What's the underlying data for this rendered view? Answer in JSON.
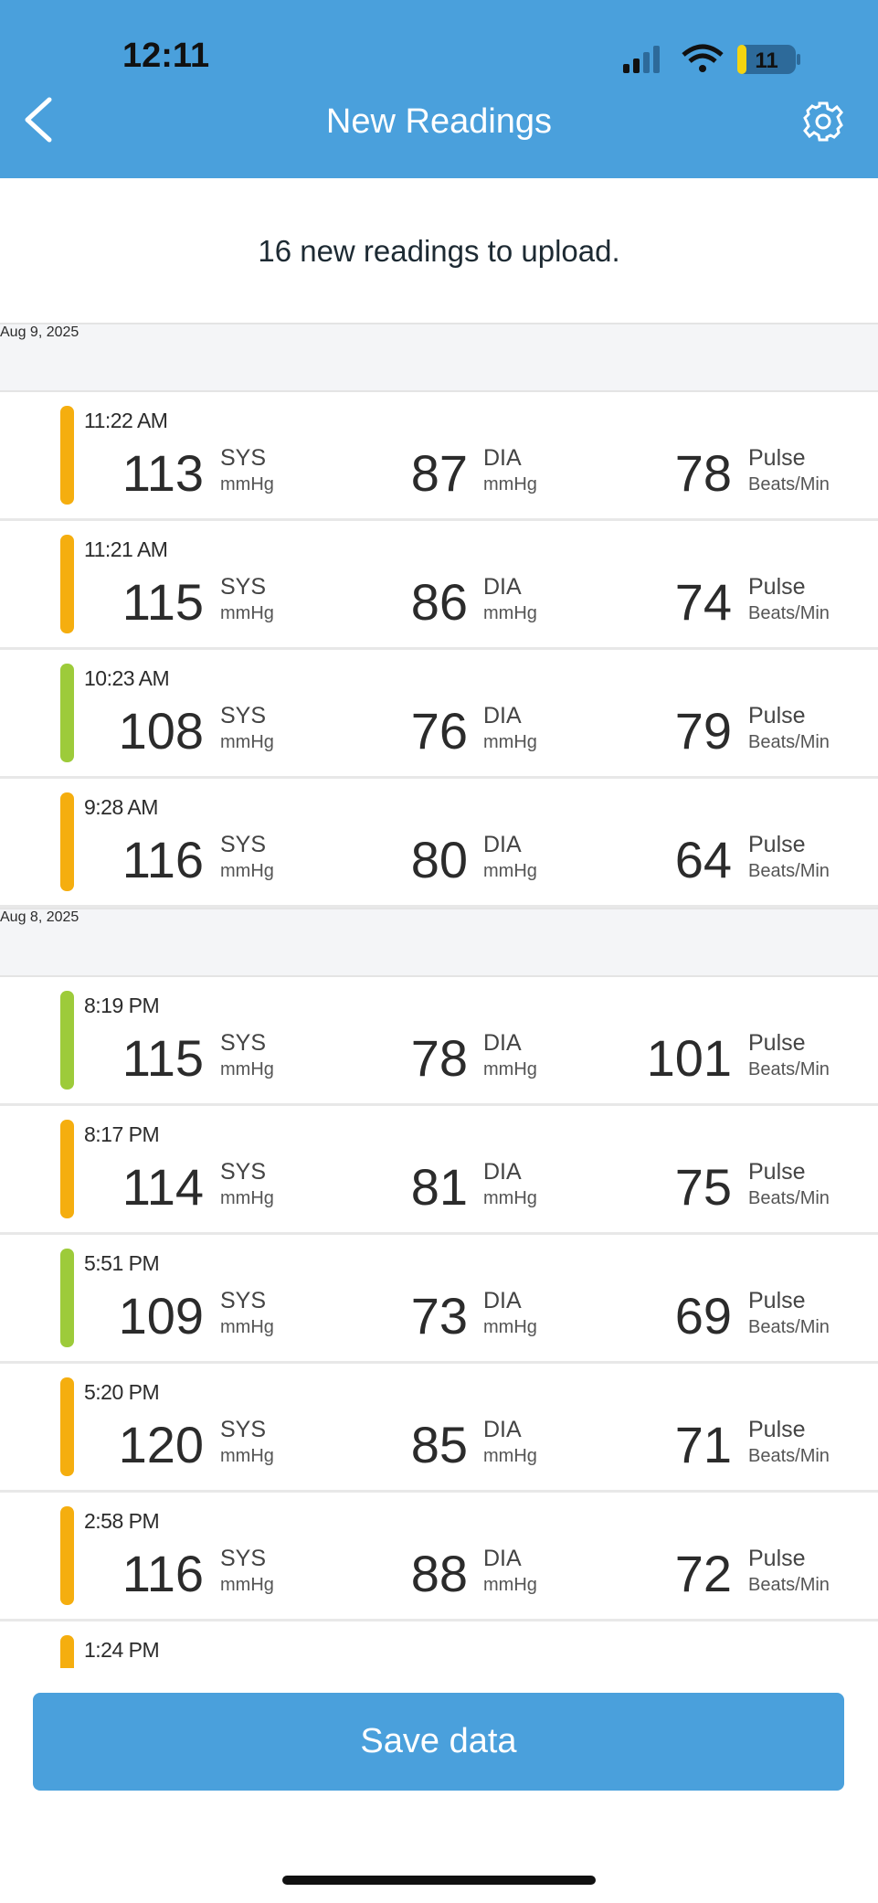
{
  "status_bar": {
    "time": "12:11",
    "battery": "11"
  },
  "header": {
    "title": "New Readings"
  },
  "summary": "16 new readings to upload.",
  "labels": {
    "sys": "SYS",
    "dia": "DIA",
    "pulse": "Pulse",
    "pressure_unit": "mmHg",
    "pulse_unit": "Beats/Min"
  },
  "sections": [
    {
      "date": "Aug 9, 2025",
      "readings": [
        {
          "time": "11:22 AM",
          "sys": 113,
          "dia": 87,
          "pulse": 78,
          "color": "#f5ae0f"
        },
        {
          "time": "11:21 AM",
          "sys": 115,
          "dia": 86,
          "pulse": 74,
          "color": "#f5ae0f"
        },
        {
          "time": "10:23 AM",
          "sys": 108,
          "dia": 76,
          "pulse": 79,
          "color": "#9dcb3a"
        },
        {
          "time": "9:28 AM",
          "sys": 116,
          "dia": 80,
          "pulse": 64,
          "color": "#f5ae0f"
        }
      ]
    },
    {
      "date": "Aug 8, 2025",
      "readings": [
        {
          "time": "8:19 PM",
          "sys": 115,
          "dia": 78,
          "pulse": 101,
          "color": "#9dcb3a"
        },
        {
          "time": "8:17 PM",
          "sys": 114,
          "dia": 81,
          "pulse": 75,
          "color": "#f5ae0f"
        },
        {
          "time": "5:51 PM",
          "sys": 109,
          "dia": 73,
          "pulse": 69,
          "color": "#9dcb3a"
        },
        {
          "time": "5:20 PM",
          "sys": 120,
          "dia": 85,
          "pulse": 71,
          "color": "#f5ae0f"
        },
        {
          "time": "2:58 PM",
          "sys": 116,
          "dia": 88,
          "pulse": 72,
          "color": "#f5ae0f"
        },
        {
          "time": "1:24 PM",
          "color": "#f5ae0f"
        }
      ]
    }
  ],
  "button": "Save data"
}
